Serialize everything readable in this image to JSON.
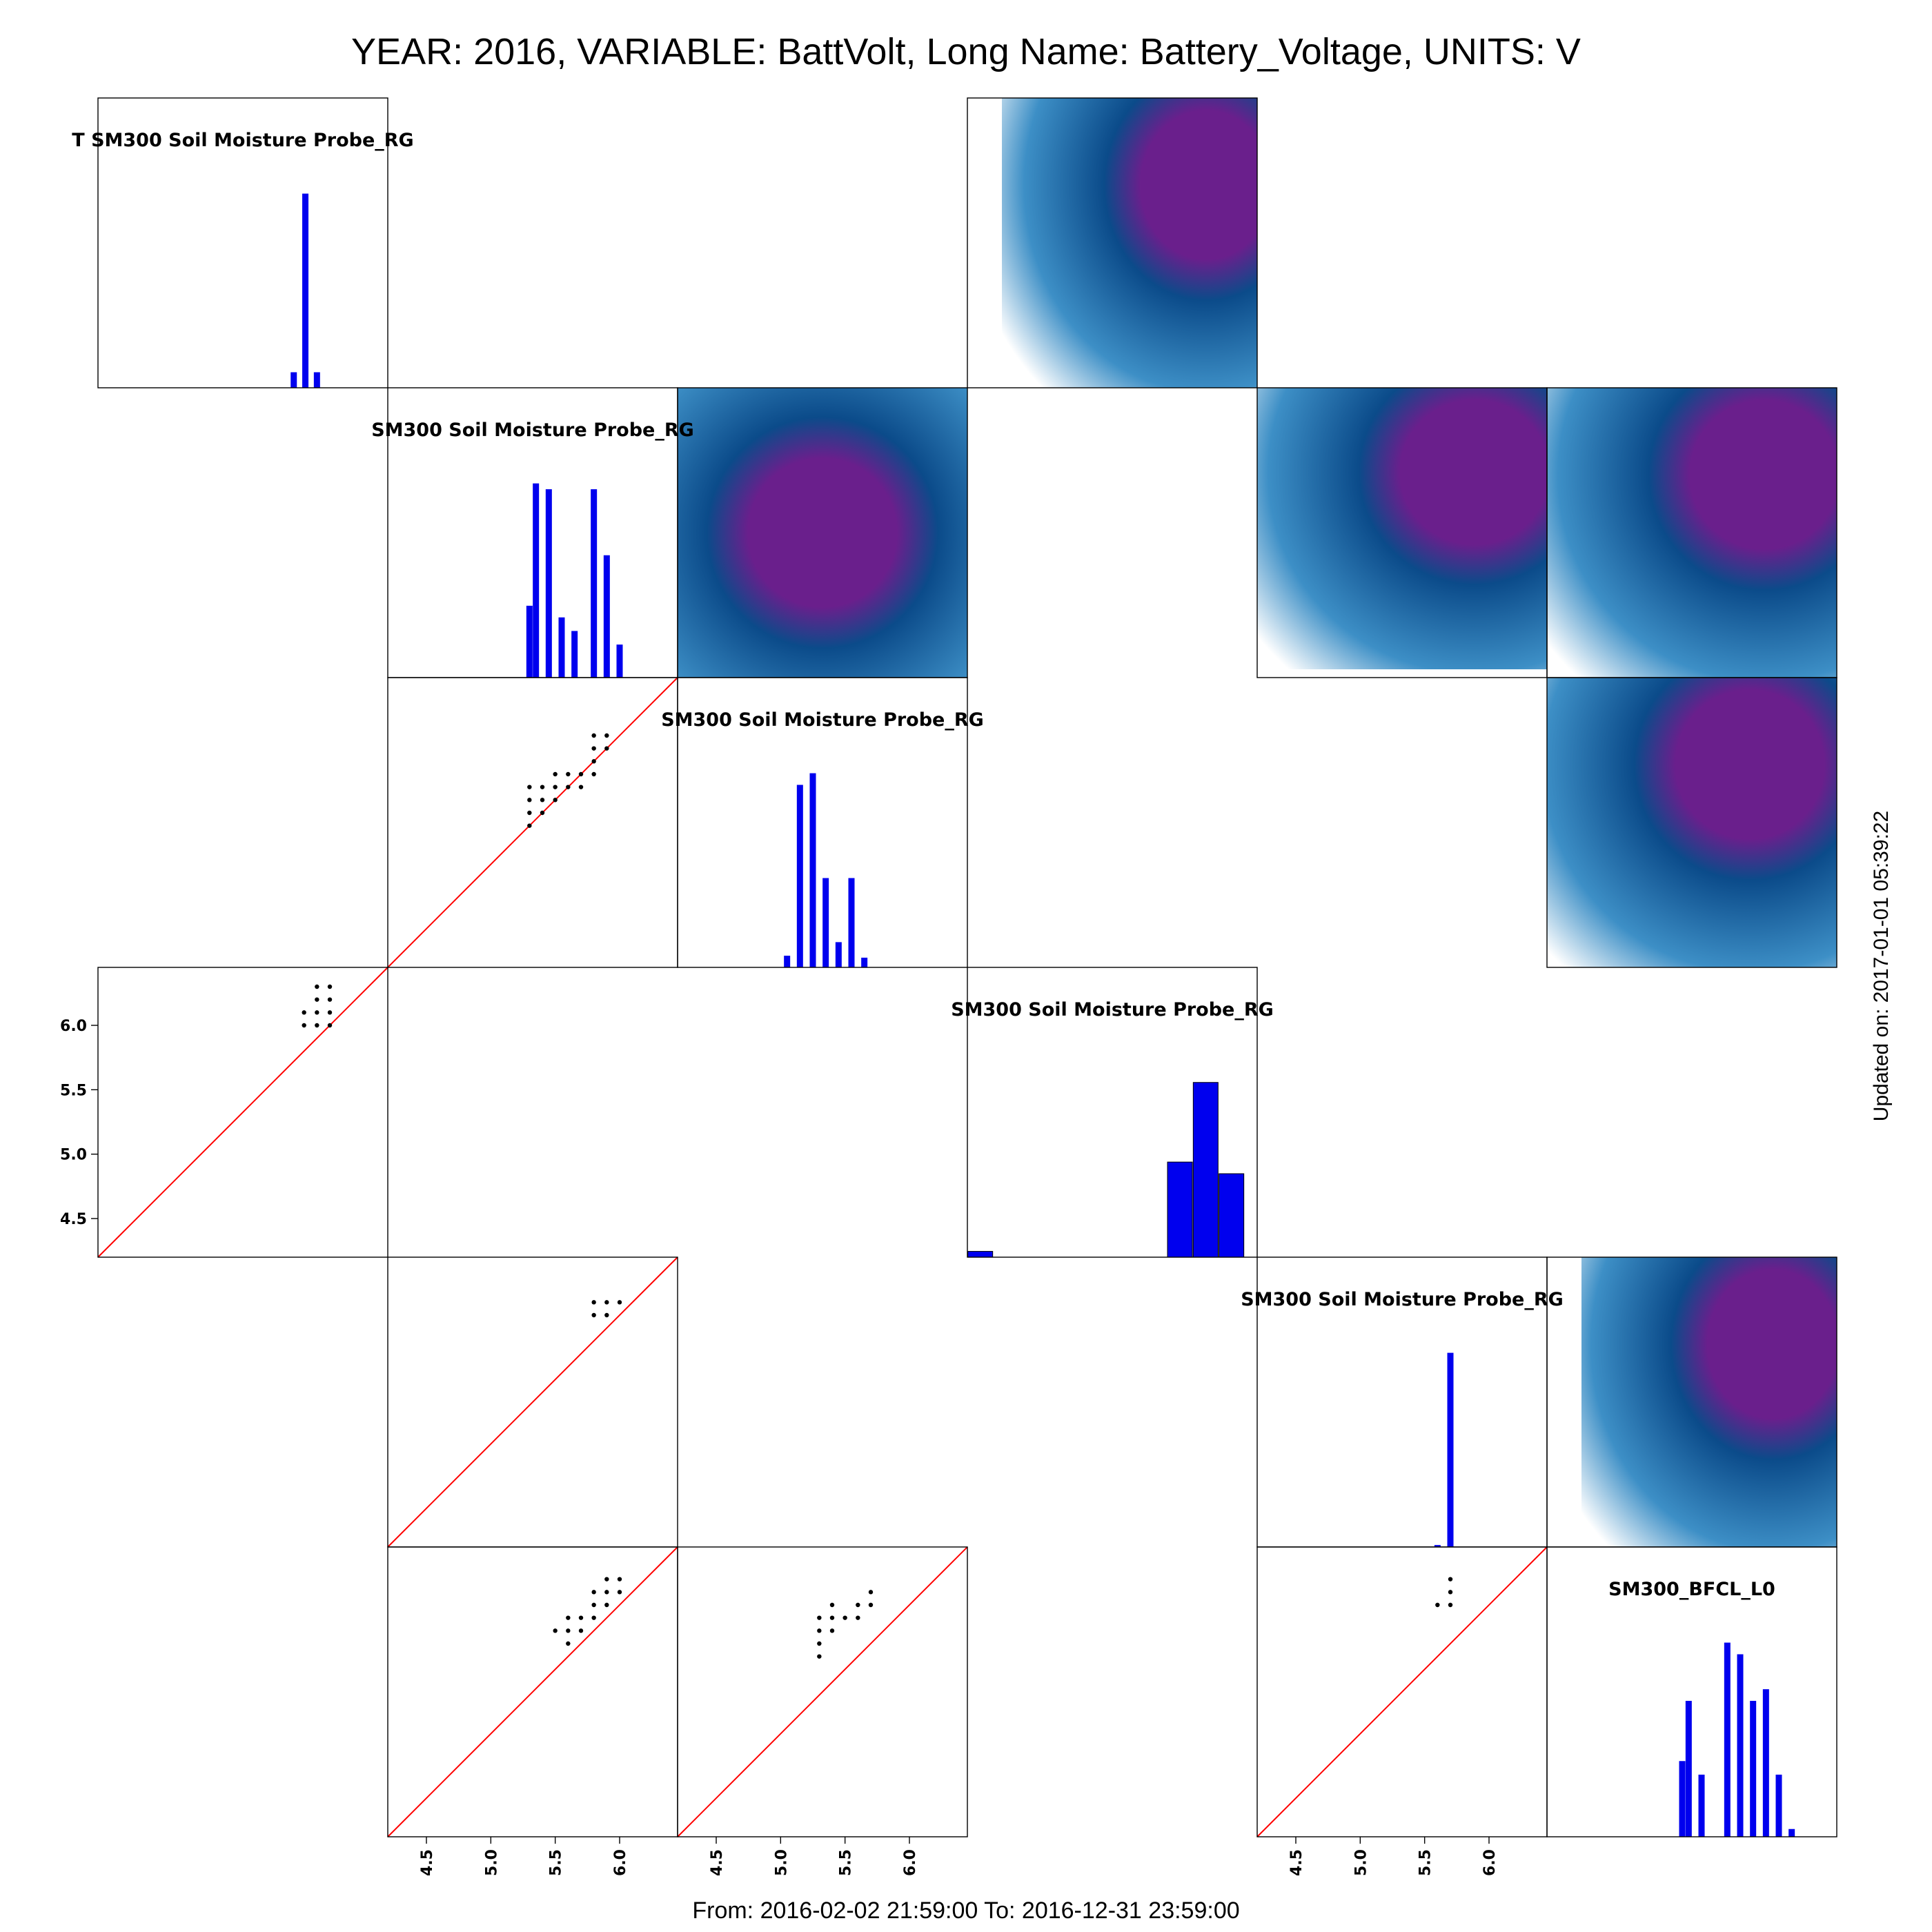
{
  "header": {
    "title": "YEAR: 2016, VARIABLE: BattVolt, Long Name: Battery_Voltage, UNITS: V",
    "footer": "From: 2016-02-02 21:59:00 To: 2016-12-31 23:59:00",
    "updated": "Updated on: 2017-01-01 05:39:22"
  },
  "colors": {
    "bars": "#0000ee",
    "points": "#000000",
    "reference_line": "#ff0000",
    "frame": "#000000",
    "density_high": "#6a1f8c",
    "density_mid": "#0b4b8a",
    "density_low": "#ffffff"
  },
  "chart_data": {
    "type": "scatter",
    "layout": "pairs",
    "axis_ticks": [
      "4.5",
      "5.0",
      "5.5",
      "6.0"
    ],
    "axis_range": [
      4.2,
      6.45
    ],
    "diagonal": [
      {
        "label": "T SM300 Soil Moisture Probe_RG",
        "bins": [
          [
            5.72,
            0.08
          ],
          [
            5.81,
            1.0
          ],
          [
            5.9,
            0.08
          ]
        ]
      },
      {
        "label": "SM300 Soil Moisture Probe_RG",
        "bins": [
          [
            5.3,
            0.37
          ],
          [
            5.35,
            1.0
          ],
          [
            5.45,
            0.97
          ],
          [
            5.55,
            0.31
          ],
          [
            5.65,
            0.24
          ],
          [
            5.8,
            0.97
          ],
          [
            5.9,
            0.63
          ],
          [
            6.0,
            0.17
          ]
        ]
      },
      {
        "label": "SM300 Soil Moisture Probe_RG",
        "bins": [
          [
            5.05,
            0.06
          ],
          [
            5.15,
            0.94
          ],
          [
            5.25,
            1.0
          ],
          [
            5.35,
            0.46
          ],
          [
            5.45,
            0.13
          ],
          [
            5.55,
            0.46
          ],
          [
            5.65,
            0.05
          ]
        ]
      },
      {
        "label": "SM300 Soil Moisture Probe_RG",
        "bins": [
          [
            4.3,
            0.03
          ],
          [
            5.85,
            0.49
          ],
          [
            6.05,
            0.9
          ],
          [
            6.25,
            0.43
          ]
        ],
        "wide": true
      },
      {
        "label": "SM300 Soil Moisture Probe_RG",
        "bins": [
          [
            5.6,
            0.01
          ],
          [
            5.7,
            1.0
          ]
        ]
      },
      {
        "label": "SM300_BFCL_L0",
        "bins": [
          [
            5.25,
            0.39
          ],
          [
            5.3,
            0.7
          ],
          [
            5.4,
            0.32
          ],
          [
            5.6,
            1.0
          ],
          [
            5.7,
            0.94
          ],
          [
            5.8,
            0.7
          ],
          [
            5.9,
            0.76
          ],
          [
            6.0,
            0.32
          ],
          [
            6.1,
            0.04
          ]
        ]
      }
    ],
    "scatter_panels": [
      {
        "row": 2,
        "col": 1,
        "points": [
          [
            5.3,
            5.3
          ],
          [
            5.3,
            5.4
          ],
          [
            5.3,
            5.5
          ],
          [
            5.3,
            5.6
          ],
          [
            5.4,
            5.4
          ],
          [
            5.4,
            5.5
          ],
          [
            5.4,
            5.6
          ],
          [
            5.5,
            5.5
          ],
          [
            5.5,
            5.6
          ],
          [
            5.5,
            5.7
          ],
          [
            5.6,
            5.6
          ],
          [
            5.6,
            5.7
          ],
          [
            5.7,
            5.6
          ],
          [
            5.7,
            5.7
          ],
          [
            5.8,
            5.7
          ],
          [
            5.8,
            5.8
          ],
          [
            5.8,
            5.9
          ],
          [
            5.8,
            6.0
          ],
          [
            5.9,
            5.9
          ],
          [
            5.9,
            6.0
          ]
        ]
      },
      {
        "row": 3,
        "col": 0,
        "points": [
          [
            5.8,
            6.0
          ],
          [
            5.8,
            6.1
          ],
          [
            5.9,
            6.0
          ],
          [
            5.9,
            6.1
          ],
          [
            5.9,
            6.2
          ],
          [
            5.9,
            6.3
          ],
          [
            6.0,
            6.0
          ],
          [
            6.0,
            6.1
          ],
          [
            6.0,
            6.2
          ],
          [
            6.0,
            6.3
          ]
        ]
      },
      {
        "row": 4,
        "col": 1,
        "points": [
          [
            5.8,
            6.0
          ],
          [
            5.8,
            6.1
          ],
          [
            5.9,
            6.0
          ],
          [
            5.9,
            6.1
          ],
          [
            6.0,
            6.1
          ]
        ]
      },
      {
        "row": 5,
        "col": 1,
        "points": [
          [
            5.5,
            5.8
          ],
          [
            5.6,
            5.7
          ],
          [
            5.6,
            5.8
          ],
          [
            5.6,
            5.9
          ],
          [
            5.7,
            5.8
          ],
          [
            5.7,
            5.9
          ],
          [
            5.8,
            5.9
          ],
          [
            5.8,
            6.0
          ],
          [
            5.8,
            6.1
          ],
          [
            5.9,
            6.0
          ],
          [
            5.9,
            6.1
          ],
          [
            5.9,
            6.2
          ],
          [
            6.0,
            6.1
          ],
          [
            6.0,
            6.2
          ]
        ]
      },
      {
        "row": 5,
        "col": 2,
        "points": [
          [
            5.3,
            5.6
          ],
          [
            5.3,
            5.7
          ],
          [
            5.3,
            5.8
          ],
          [
            5.3,
            5.9
          ],
          [
            5.4,
            5.8
          ],
          [
            5.4,
            5.9
          ],
          [
            5.4,
            6.0
          ],
          [
            5.5,
            5.9
          ],
          [
            5.6,
            5.9
          ],
          [
            5.6,
            6.0
          ],
          [
            5.7,
            6.0
          ],
          [
            5.7,
            6.1
          ]
        ]
      },
      {
        "row": 5,
        "col": 4,
        "points": [
          [
            5.6,
            6.0
          ],
          [
            5.7,
            6.0
          ],
          [
            5.7,
            6.1
          ],
          [
            5.7,
            6.2
          ]
        ]
      }
    ],
    "density_panels": [
      {
        "row": 0,
        "col": 3,
        "mode": 0.8,
        "cut_left": true
      },
      {
        "row": 1,
        "col": 2,
        "mode": 0.5
      },
      {
        "row": 1,
        "col": 4,
        "mode": 0.75,
        "cut_bottom": true
      },
      {
        "row": 1,
        "col": 5,
        "mode": 0.75
      },
      {
        "row": 2,
        "col": 5,
        "mode": 0.7
      },
      {
        "row": 4,
        "col": 5,
        "mode": 0.75,
        "cut_left": true
      }
    ],
    "left_axis_panel": {
      "row": 3,
      "col": 0
    },
    "bottom_axis_panels": [
      {
        "row": 5,
        "col": 1
      },
      {
        "row": 5,
        "col": 2
      },
      {
        "row": 5,
        "col": 4
      }
    ]
  }
}
